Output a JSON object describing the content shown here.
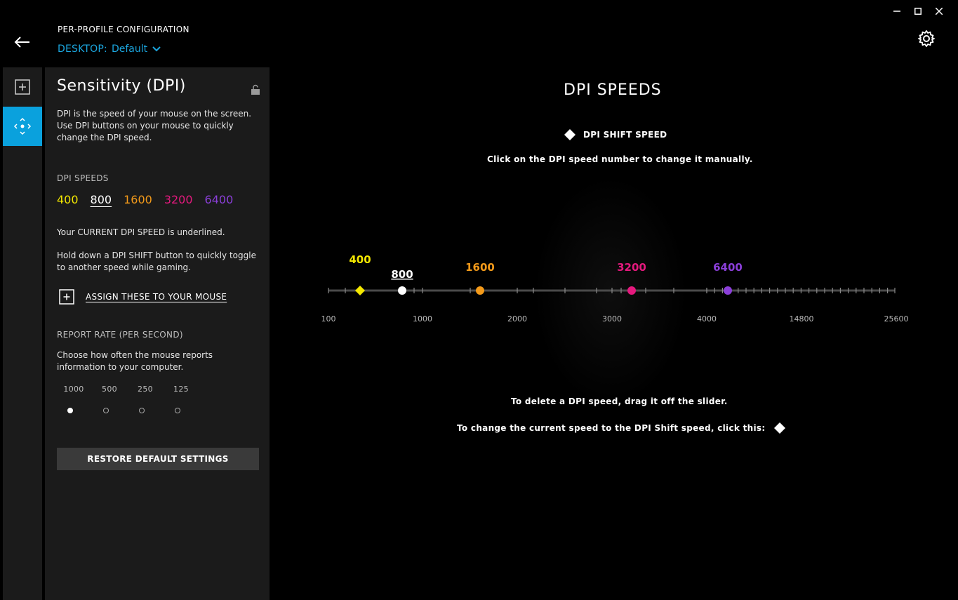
{
  "window": {
    "minimize_icon": "minimize-icon",
    "maximize_icon": "maximize-icon",
    "close_icon": "close-icon"
  },
  "header": {
    "title": "PER-PROFILE CONFIGURATION",
    "profile_label": "DESKTOP:",
    "profile_value": "Default"
  },
  "panel": {
    "title": "Sensitivity (DPI)",
    "description": "DPI is the speed of your mouse on the screen. Use DPI buttons on your mouse to quickly change the DPI speed.",
    "dpi_section_label": "DPI SPEEDS",
    "dpi_speeds": [
      {
        "value": "400",
        "color": "#f4e800"
      },
      {
        "value": "800",
        "color": "#ffffff"
      },
      {
        "value": "1600",
        "color": "#f39a1a"
      },
      {
        "value": "3200",
        "color": "#e5197e"
      },
      {
        "value": "6400",
        "color": "#8b3fd9"
      }
    ],
    "current_note": "Your CURRENT DPI SPEED is underlined.",
    "shift_note": "Hold down a DPI SHIFT button to quickly toggle to another speed while gaming.",
    "assign_label": "ASSIGN THESE TO YOUR MOUSE",
    "report_label": "REPORT RATE (PER SECOND)",
    "report_desc": "Choose how often the mouse reports information to your computer.",
    "report_rates": [
      {
        "label": "1000",
        "selected": true
      },
      {
        "label": "500",
        "selected": false
      },
      {
        "label": "250",
        "selected": false
      },
      {
        "label": "125",
        "selected": false
      }
    ],
    "restore_label": "RESTORE DEFAULT SETTINGS"
  },
  "main": {
    "title": "DPI SPEEDS",
    "shift_legend": "DPI SHIFT SPEED",
    "click_hint": "Click on the DPI speed number to change it manually.",
    "delete_hint": "To delete a DPI speed, drag it off the slider.",
    "shift_hint": "To change the current speed to the DPI Shift speed, click this:",
    "scale_labels": [
      "100",
      "1000",
      "2000",
      "3000",
      "4000",
      "14800",
      "25600"
    ],
    "markers": [
      {
        "label": "400",
        "color": "#f4e800",
        "shape": "diamond",
        "current": false
      },
      {
        "label": "800",
        "color": "#ffffff",
        "shape": "circle",
        "current": true
      },
      {
        "label": "1600",
        "color": "#f39a1a",
        "shape": "circle",
        "current": false
      },
      {
        "label": "3200",
        "color": "#e5197e",
        "shape": "circle",
        "current": false
      },
      {
        "label": "6400",
        "color": "#8b3fd9",
        "shape": "circle",
        "current": false
      }
    ]
  }
}
